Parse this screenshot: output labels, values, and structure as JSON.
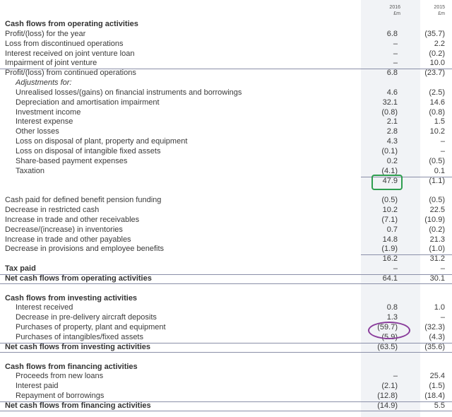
{
  "header": {
    "y2016": "2016",
    "y2015": "2015",
    "unit": "£m"
  },
  "rows": [
    {
      "label": "Cash flows from operating activities",
      "v16": "",
      "v15": "",
      "style": "bold"
    },
    {
      "label": "Profit/(loss) for the year",
      "v16": "6.8",
      "v15": "(35.7)",
      "style": ""
    },
    {
      "label": "Loss from discontinued operations",
      "v16": "–",
      "v15": "2.2",
      "style": ""
    },
    {
      "label": "Interest received on joint venture loan",
      "v16": "–",
      "v15": "(0.2)",
      "style": ""
    },
    {
      "label": "Impairment of joint venture",
      "v16": "–",
      "v15": "10.0",
      "style": ""
    },
    {
      "label": "Profit/(loss) from continued operations",
      "v16": "6.8",
      "v15": "(23.7)",
      "style": "topline-full"
    },
    {
      "label": "Adjustments for:",
      "v16": "",
      "v15": "",
      "style": "indent italic"
    },
    {
      "label": "Unrealised losses/(gains) on financial instruments and borrowings",
      "v16": "4.6",
      "v15": "(2.5)",
      "style": "indent"
    },
    {
      "label": "Depreciation and amortisation impairment",
      "v16": "32.1",
      "v15": "14.6",
      "style": "indent"
    },
    {
      "label": "Investment income",
      "v16": "(0.8)",
      "v15": "(0.8)",
      "style": "indent"
    },
    {
      "label": "Interest expense",
      "v16": "2.1",
      "v15": "1.5",
      "style": "indent"
    },
    {
      "label": "Other losses",
      "v16": "2.8",
      "v15": "10.2",
      "style": "indent"
    },
    {
      "label": "Loss on disposal of plant, property and equipment",
      "v16": "4.3",
      "v15": "–",
      "style": "indent"
    },
    {
      "label": "Loss on disposal of intangible fixed assets",
      "v16": "(0.1)",
      "v15": "–",
      "style": "indent"
    },
    {
      "label": "Share-based payment expenses",
      "v16": "0.2",
      "v15": "(0.5)",
      "style": "indent"
    },
    {
      "label": "Taxation",
      "v16": "(4.1)",
      "v15": "0.1",
      "style": "indent"
    },
    {
      "label": "",
      "v16": "47.9",
      "v15": "(1.1)",
      "style": "topline-num"
    },
    {
      "label": "",
      "v16": "",
      "v15": "",
      "style": "spacer"
    },
    {
      "label": "Cash paid for defined benefit pension funding",
      "v16": "(0.5)",
      "v15": "(0.5)",
      "style": ""
    },
    {
      "label": "Decrease in restricted cash",
      "v16": "10.2",
      "v15": "22.5",
      "style": ""
    },
    {
      "label": "Increase in trade and other receivables",
      "v16": "(7.1)",
      "v15": "(10.9)",
      "style": ""
    },
    {
      "label": "Decrease/(increase) in inventories",
      "v16": "0.7",
      "v15": "(0.2)",
      "style": ""
    },
    {
      "label": "Increase in trade and other payables",
      "v16": "14.8",
      "v15": "21.3",
      "style": ""
    },
    {
      "label": "Decrease in provisions and employee benefits",
      "v16": "(1.9)",
      "v15": "(1.0)",
      "style": ""
    },
    {
      "label": "",
      "v16": "16.2",
      "v15": "31.2",
      "style": "topline-num"
    },
    {
      "label": "Tax paid",
      "v16": "–",
      "v15": "–",
      "style": "bold"
    },
    {
      "label": "Net cash flows from operating activities",
      "v16": "64.1",
      "v15": "30.1",
      "style": "bold topline-full underline"
    },
    {
      "label": "",
      "v16": "",
      "v15": "",
      "style": "spacer"
    },
    {
      "label": "Cash flows from investing activities",
      "v16": "",
      "v15": "",
      "style": "bold"
    },
    {
      "label": "Interest received",
      "v16": "0.8",
      "v15": "1.0",
      "style": "indent"
    },
    {
      "label": "Decrease in pre-delivery aircraft deposits",
      "v16": "1.3",
      "v15": "–",
      "style": "indent"
    },
    {
      "label": "Purchases of property, plant and equipment",
      "v16": "(59.7)",
      "v15": "(32.3)",
      "style": "indent"
    },
    {
      "label": "Purchases of intangibles/fixed assets",
      "v16": "(5.9)",
      "v15": "(4.3)",
      "style": "indent"
    },
    {
      "label": "Net cash flows from investing activities",
      "v16": "(63.5)",
      "v15": "(35.6)",
      "style": "bold topline-full underline"
    },
    {
      "label": "",
      "v16": "",
      "v15": "",
      "style": "spacer"
    },
    {
      "label": "Cash flows from financing activities",
      "v16": "",
      "v15": "",
      "style": "bold"
    },
    {
      "label": "Proceeds from new loans",
      "v16": "–",
      "v15": "25.4",
      "style": "indent"
    },
    {
      "label": "Interest paid",
      "v16": "(2.1)",
      "v15": "(1.5)",
      "style": "indent"
    },
    {
      "label": "Repayment of borrowings",
      "v16": "(12.8)",
      "v15": "(18.4)",
      "style": "indent"
    },
    {
      "label": "Net cash flows from financing activities",
      "v16": "(14.9)",
      "v15": "5.5",
      "style": "bold topline-full underline"
    }
  ],
  "colors": {
    "highlight_green": "#2e9e4f",
    "highlight_purple": "#8a3d9c",
    "column_shade": "#f1f3f6"
  }
}
